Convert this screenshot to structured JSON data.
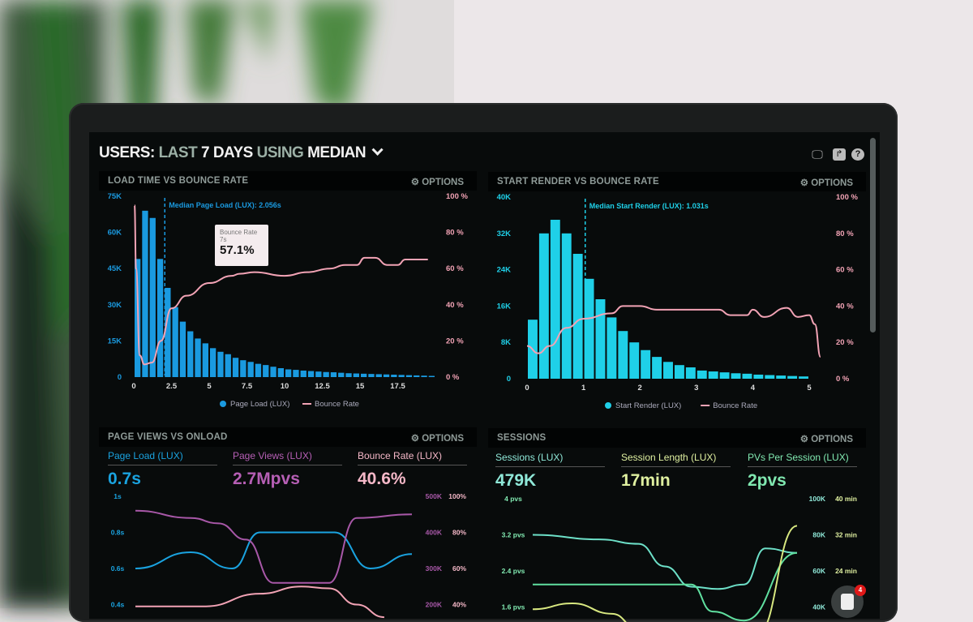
{
  "header": {
    "title_parts": [
      "USERS:",
      "LAST",
      "7 DAYS",
      "USING",
      "MEDIAN"
    ],
    "icons": [
      "monitor-icon",
      "share-icon",
      "help-icon"
    ]
  },
  "options_label": "OPTIONS",
  "panels": [
    {
      "title": "LOAD TIME VS BOUNCE RATE"
    },
    {
      "title": "START RENDER VS BOUNCE RATE"
    },
    {
      "title": "PAGE VIEWS VS ONLOAD",
      "metrics": [
        {
          "label": "Page Load (LUX)",
          "value": "0.7s",
          "color": "#1aa3e0"
        },
        {
          "label": "Page Views (LUX)",
          "value": "2.7Mpvs",
          "color": "#b65fb5"
        },
        {
          "label": "Bounce Rate (LUX)",
          "value": "40.6%",
          "color": "#f5b8c8"
        }
      ]
    },
    {
      "title": "SESSIONS",
      "metrics": [
        {
          "label": "Sessions (LUX)",
          "value": "479K",
          "color": "#8fe8d8"
        },
        {
          "label": "Session Length (LUX)",
          "value": "17min",
          "color": "#dff0a0"
        },
        {
          "label": "PVs Per Session (LUX)",
          "value": "2pvs",
          "color": "#80e8b0"
        }
      ]
    }
  ],
  "tooltip": {
    "title": "Bounce Rate",
    "sub": "7s",
    "value": "57.1%"
  },
  "chat_badge": "4",
  "chart_data": [
    {
      "type": "bar",
      "title": "LOAD TIME VS BOUNCE RATE",
      "x_ticks": [
        "0",
        "2.5",
        "5",
        "7.5",
        "10",
        "12.5",
        "15",
        "17.5"
      ],
      "y_ticks": [
        "0",
        "15K",
        "30K",
        "45K",
        "60K",
        "75K"
      ],
      "y2_ticks": [
        "0 %",
        "20 %",
        "40 %",
        "60 %",
        "80 %",
        "100 %"
      ],
      "ylim": [
        0,
        75000
      ],
      "y2lim": [
        0,
        100
      ],
      "annotation": "Median Page Load (LUX): 2.056s",
      "median": 2.056,
      "series": [
        {
          "name": "Page Load (LUX)",
          "type": "bar",
          "color": "#1a9ae0",
          "bin_width": 0.5,
          "values": [
            49000,
            69000,
            66000,
            49000,
            37000,
            29000,
            23000,
            19000,
            16000,
            14000,
            12000,
            10500,
            9500,
            8000,
            7000,
            6300,
            5500,
            5000,
            4300,
            3700,
            3200,
            3000,
            2700,
            2500,
            2300,
            2100,
            2000,
            1800,
            1600,
            1500,
            1400,
            1300,
            1200,
            1100,
            1000,
            900,
            800,
            700,
            600,
            500
          ]
        },
        {
          "name": "Bounce Rate",
          "type": "line",
          "color": "#f2a3b5",
          "points": [
            [
              0.05,
              95
            ],
            [
              0.15,
              60
            ],
            [
              0.4,
              12
            ],
            [
              0.7,
              7
            ],
            [
              1.2,
              8
            ],
            [
              1.8,
              20
            ],
            [
              2.5,
              38
            ],
            [
              3.5,
              45
            ],
            [
              5,
              52
            ],
            [
              6.5,
              56
            ],
            [
              7,
              57.1
            ],
            [
              8,
              58
            ],
            [
              10,
              56
            ],
            [
              11.5,
              58
            ],
            [
              13,
              60
            ],
            [
              14,
              62
            ],
            [
              14.8,
              62
            ],
            [
              15.3,
              66
            ],
            [
              16,
              66
            ],
            [
              16.8,
              62
            ],
            [
              17.5,
              62
            ],
            [
              18,
              65
            ],
            [
              19.5,
              65
            ]
          ]
        }
      ]
    },
    {
      "type": "bar",
      "title": "START RENDER VS BOUNCE RATE",
      "x_ticks": [
        "0",
        "1",
        "2",
        "3",
        "4",
        "5"
      ],
      "y_ticks": [
        "0",
        "8K",
        "16K",
        "24K",
        "32K",
        "40K"
      ],
      "y2_ticks": [
        "0 %",
        "20 %",
        "40 %",
        "60 %",
        "80 %",
        "100 %"
      ],
      "ylim": [
        0,
        40000
      ],
      "y2lim": [
        0,
        100
      ],
      "annotation": "Median Start Render (LUX): 1.031s",
      "median": 1.031,
      "series": [
        {
          "name": "Start Render (LUX)",
          "type": "bar",
          "color": "#1fd0e8",
          "bin_width": 0.2,
          "values": [
            13000,
            32000,
            35000,
            32000,
            27500,
            22000,
            17500,
            13500,
            10500,
            8000,
            6300,
            4800,
            3700,
            3000,
            2500,
            1800,
            1600,
            1400,
            1200,
            1100,
            900,
            800,
            700,
            600,
            500
          ]
        },
        {
          "name": "Bounce Rate",
          "type": "line",
          "color": "#f2a3b5",
          "points": [
            [
              0,
              18
            ],
            [
              0.2,
              14
            ],
            [
              0.4,
              18
            ],
            [
              0.7,
              28
            ],
            [
              1,
              33
            ],
            [
              1.5,
              36
            ],
            [
              1.7,
              40
            ],
            [
              2,
              40
            ],
            [
              2.3,
              38
            ],
            [
              3,
              38
            ],
            [
              3.4,
              38
            ],
            [
              3.6,
              35
            ],
            [
              3.9,
              35
            ],
            [
              4,
              38
            ],
            [
              4.2,
              34
            ],
            [
              4.6,
              39
            ],
            [
              4.8,
              34
            ],
            [
              5,
              35
            ],
            [
              5.1,
              30
            ],
            [
              5.2,
              12
            ]
          ]
        }
      ]
    },
    {
      "type": "line",
      "title": "PAGE VIEWS VS ONLOAD",
      "y_ticks": [
        "1s",
        "0.8s",
        "0.6s",
        "0.4s"
      ],
      "y2_ticks": [
        "500K",
        "400K",
        "300K",
        "200K"
      ],
      "y3_ticks": [
        "100%",
        "80%",
        "60%",
        "40%"
      ],
      "series": [
        {
          "name": "Page Load (LUX)",
          "color": "#1aa3e0",
          "points": [
            [
              0,
              0.6
            ],
            [
              0.2,
              0.69
            ],
            [
              0.35,
              0.6
            ],
            [
              0.45,
              0.8
            ],
            [
              0.72,
              0.8
            ],
            [
              0.85,
              0.6
            ],
            [
              1,
              0.68
            ]
          ]
        },
        {
          "name": "Page Views (LUX)",
          "color": "#a858a8",
          "points": [
            [
              0,
              0.92
            ],
            [
              0.2,
              0.88
            ],
            [
              0.3,
              0.85
            ],
            [
              0.4,
              0.76
            ],
            [
              0.5,
              0.52
            ],
            [
              0.7,
              0.52
            ],
            [
              0.8,
              0.88
            ],
            [
              1,
              0.9
            ]
          ]
        },
        {
          "name": "Bounce Rate (LUX)",
          "color": "#f2a3b5",
          "points": [
            [
              0,
              0.39
            ],
            [
              0.25,
              0.39
            ],
            [
              0.45,
              0.46
            ],
            [
              0.6,
              0.5
            ],
            [
              0.7,
              0.49
            ],
            [
              0.8,
              0.4
            ],
            [
              0.9,
              0.33
            ]
          ]
        }
      ]
    },
    {
      "type": "line",
      "title": "SESSIONS",
      "y_ticks": [
        "4 pvs",
        "3.2 pvs",
        "2.4 pvs",
        "1.6 pvs"
      ],
      "y2_ticks": [
        "100K",
        "80K",
        "60K",
        "40K"
      ],
      "y3_ticks": [
        "40 min",
        "32 min",
        "24 min"
      ],
      "series": [
        {
          "name": "PVs Per Session (LUX)",
          "color": "#6de0c8",
          "points": [
            [
              0,
              3.2
            ],
            [
              0.25,
              3.1
            ],
            [
              0.4,
              3.0
            ],
            [
              0.5,
              2.5
            ],
            [
              0.6,
              2.05
            ],
            [
              0.7,
              2.0
            ],
            [
              0.8,
              2.1
            ],
            [
              0.88,
              2.9
            ],
            [
              1,
              2.8
            ]
          ]
        },
        {
          "name": "Sessions (LUX)",
          "color": "#60e0a0",
          "points": [
            [
              0,
              2.1
            ],
            [
              0.6,
              2.1
            ],
            [
              0.68,
              1.5
            ],
            [
              0.8,
              1.3
            ],
            [
              1,
              2.8
            ]
          ]
        },
        {
          "name": "Session Length (LUX)",
          "color": "#d8e880",
          "points": [
            [
              0,
              1.55
            ],
            [
              0.15,
              1.68
            ],
            [
              0.3,
              1.45
            ],
            [
              0.4,
              1.1
            ],
            [
              0.85,
              1.0
            ],
            [
              1,
              3.4
            ]
          ]
        }
      ]
    }
  ]
}
